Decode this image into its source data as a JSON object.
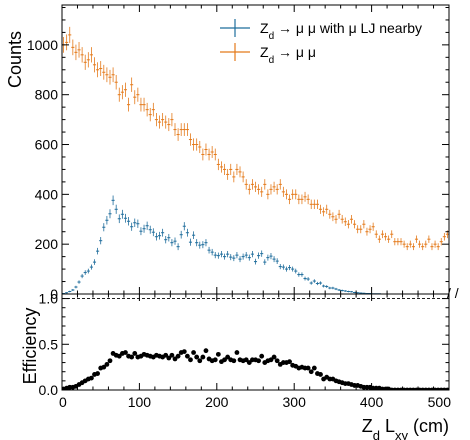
{
  "chart_data": [
    {
      "type": "histogram",
      "ylabel": "Counts",
      "xlim": [
        0,
        500
      ],
      "ylim": [
        0,
        1160
      ],
      "yticks": [
        0,
        200,
        400,
        600,
        800,
        1000
      ],
      "bin_width": 4,
      "legend_position": "top-right",
      "series": [
        {
          "name": "Z_d → μ μ with μ LJ nearby",
          "label_parts": [
            "Z",
            "d",
            " → μ μ with μ LJ nearby"
          ],
          "color": "#1f6d9c",
          "values": [
            2,
            5,
            10,
            16,
            28,
            48,
            72,
            86,
            92,
            108,
            128,
            172,
            214,
            268,
            296,
            322,
            376,
            340,
            302,
            320,
            304,
            292,
            270,
            286,
            282,
            252,
            262,
            274,
            258,
            248,
            230,
            234,
            246,
            218,
            226,
            206,
            212,
            190,
            238,
            272,
            246,
            208,
            236,
            206,
            196,
            198,
            206,
            176,
            168,
            156,
            154,
            160,
            150,
            160,
            148,
            144,
            156,
            140,
            150,
            156,
            146,
            160,
            130,
            154,
            162,
            128,
            146,
            152,
            140,
            132,
            110,
            108,
            100,
            106,
            100,
            92,
            78,
            78,
            62,
            60,
            44,
            52,
            42,
            44,
            32,
            30,
            24,
            24,
            20,
            16,
            14,
            12,
            10,
            9,
            6,
            5,
            4,
            3,
            2,
            2,
            1,
            1,
            1,
            0,
            0,
            0,
            0,
            0,
            0,
            0,
            0,
            0,
            0,
            0,
            0,
            0,
            0,
            0,
            0,
            0,
            0,
            0,
            0,
            0,
            0
          ]
        },
        {
          "name": "Z_d → μ μ",
          "label_parts": [
            "Z",
            "d",
            " → μ μ"
          ],
          "color": "#e47a1b",
          "values": [
            1000,
            1010,
            1040,
            990,
            970,
            980,
            960,
            930,
            940,
            960,
            920,
            900,
            905,
            890,
            880,
            870,
            880,
            850,
            800,
            810,
            820,
            760,
            840,
            790,
            800,
            760,
            760,
            740,
            720,
            740,
            700,
            690,
            700,
            690,
            680,
            700,
            660,
            640,
            660,
            660,
            660,
            620,
            600,
            600,
            590,
            560,
            580,
            560,
            570,
            560,
            520,
            510,
            500,
            480,
            500,
            470,
            500,
            490,
            470,
            440,
            420,
            440,
            430,
            420,
            410,
            440,
            400,
            420,
            430,
            420,
            440,
            410,
            400,
            380,
            400,
            400,
            380,
            380,
            390,
            380,
            360,
            360,
            360,
            340,
            330,
            340,
            320,
            310,
            300,
            320,
            300,
            290,
            280,
            300,
            280,
            260,
            260,
            280,
            250,
            260,
            270,
            240,
            220,
            240,
            230,
            220,
            240,
            210,
            210,
            210,
            200,
            190,
            200,
            190,
            220,
            200,
            190,
            200,
            220,
            190,
            200,
            190,
            210,
            230,
            240
          ]
        }
      ]
    },
    {
      "type": "scatter",
      "xlabel_parts": [
        "Z",
        "d",
        " L",
        "xy",
        " (cm)"
      ],
      "ylabel": "Efficiency",
      "xlim": [
        0,
        500
      ],
      "ylim": [
        0,
        1.05
      ],
      "xticks": [
        0,
        100,
        200,
        300,
        400,
        500
      ],
      "yticks": [
        0,
        0.5,
        1
      ],
      "ytick_labels": [
        "0.0",
        "0.5",
        "1.0"
      ],
      "color": "#000000",
      "x": [
        2,
        6,
        10,
        14,
        18,
        22,
        26,
        30,
        34,
        38,
        42,
        46,
        50,
        54,
        58,
        62,
        66,
        70,
        74,
        78,
        82,
        86,
        90,
        94,
        98,
        102,
        106,
        110,
        114,
        118,
        122,
        126,
        130,
        134,
        138,
        142,
        146,
        150,
        154,
        158,
        162,
        166,
        170,
        174,
        178,
        182,
        186,
        190,
        194,
        198,
        202,
        206,
        210,
        214,
        218,
        222,
        226,
        230,
        234,
        238,
        242,
        246,
        250,
        254,
        258,
        262,
        266,
        270,
        274,
        278,
        282,
        286,
        290,
        294,
        298,
        302,
        306,
        310,
        314,
        318,
        322,
        326,
        330,
        334,
        338,
        342,
        346,
        350,
        354,
        358,
        362,
        366,
        370,
        374,
        378,
        382,
        386,
        390,
        394,
        398,
        402,
        406,
        410,
        414,
        418,
        422,
        426,
        430,
        434,
        438,
        442,
        446,
        450,
        454,
        458,
        462,
        466,
        470,
        474,
        478,
        482,
        486,
        490,
        494,
        498
      ],
      "y": [
        0.01,
        0.02,
        0.03,
        0.03,
        0.04,
        0.06,
        0.08,
        0.1,
        0.12,
        0.13,
        0.17,
        0.18,
        0.24,
        0.25,
        0.28,
        0.32,
        0.4,
        0.38,
        0.37,
        0.4,
        0.41,
        0.37,
        0.36,
        0.4,
        0.36,
        0.37,
        0.39,
        0.38,
        0.37,
        0.36,
        0.38,
        0.37,
        0.36,
        0.38,
        0.35,
        0.38,
        0.34,
        0.37,
        0.41,
        0.42,
        0.37,
        0.33,
        0.41,
        0.36,
        0.32,
        0.36,
        0.43,
        0.34,
        0.32,
        0.33,
        0.39,
        0.31,
        0.33,
        0.36,
        0.33,
        0.32,
        0.41,
        0.33,
        0.32,
        0.33,
        0.3,
        0.33,
        0.33,
        0.32,
        0.37,
        0.3,
        0.32,
        0.33,
        0.36,
        0.32,
        0.28,
        0.3,
        0.3,
        0.31,
        0.27,
        0.26,
        0.24,
        0.25,
        0.24,
        0.24,
        0.2,
        0.24,
        0.18,
        0.17,
        0.12,
        0.14,
        0.12,
        0.12,
        0.1,
        0.09,
        0.08,
        0.07,
        0.07,
        0.06,
        0.05,
        0.05,
        0.04,
        0.03,
        0.03,
        0.03,
        0.02,
        0.02,
        0.02,
        0.01,
        0.01,
        0.01,
        0,
        0,
        0,
        0,
        0,
        0,
        0,
        0,
        0,
        0,
        0,
        0,
        0,
        0,
        0,
        0,
        0,
        0,
        0
      ]
    }
  ]
}
